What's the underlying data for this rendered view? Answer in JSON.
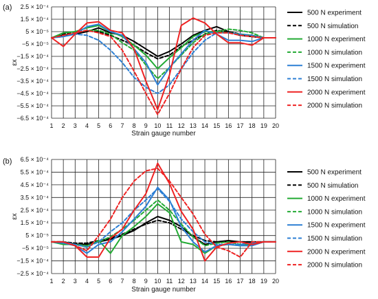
{
  "chart_data": [
    {
      "type": "line",
      "panel_label": "(a)",
      "xlabel": "Strain gauge number",
      "ylabel": "εx",
      "x": [
        1,
        2,
        3,
        4,
        5,
        6,
        7,
        8,
        9,
        10,
        11,
        12,
        13,
        14,
        15,
        16,
        17,
        18,
        19,
        20
      ],
      "xticklabels": [
        "1",
        "2",
        "3",
        "4",
        "5",
        "6",
        "7",
        "8",
        "9",
        "10",
        "11",
        "12",
        "13",
        "14",
        "15",
        "16",
        "17",
        "18",
        "19",
        "20"
      ],
      "ylim": [
        -0.00065,
        0.00025
      ],
      "yticks": [
        0.00025,
        0.00015,
        5e-05,
        -5e-05,
        -0.00015,
        -0.00025,
        -0.00035,
        -0.00045,
        -0.00055,
        -0.00065
      ],
      "yticklabels": [
        "2.5 × 10⁻⁴",
        "1.5 × 10⁻⁴",
        "5 × 10⁻⁵",
        "−5 × 10⁻⁵",
        "−1.5 × 10⁻⁴",
        "−2.5 × 10⁻⁴",
        "−3.5 × 10⁻⁴",
        "−4.5 × 10⁻⁴",
        "−5.5 × 10⁻⁴",
        "−6.5 × 10⁻⁴"
      ],
      "grid": true,
      "legend_position": "right",
      "series": [
        {
          "name": "500 N experiment",
          "color": "#000000",
          "dashed": false,
          "values": [
            0,
            2e-05,
            3e-05,
            5e-05,
            8e-05,
            4e-05,
            2e-05,
            -3e-05,
            -9e-05,
            -0.00015,
            -0.00011,
            -5e-05,
            2e-05,
            6e-05,
            9e-05,
            5e-05,
            2e-05,
            1e-05,
            0,
            0
          ]
        },
        {
          "name": "500 N simulation",
          "color": "#000000",
          "dashed": true,
          "values": [
            0,
            3e-05,
            4e-05,
            6e-05,
            5e-05,
            2e-05,
            -2e-05,
            -6e-05,
            -0.00012,
            -0.00017,
            -0.00014,
            -7e-05,
            -2e-05,
            3e-05,
            6e-05,
            5e-05,
            3e-05,
            1e-05,
            0,
            0
          ]
        },
        {
          "name": "1000 N experiment",
          "color": "#22aa33",
          "dashed": false,
          "values": [
            0,
            4e-05,
            5e-05,
            8e-05,
            0.0001,
            5e-05,
            1e-05,
            -6e-05,
            -0.00014,
            -0.00025,
            -0.00016,
            -8e-05,
            1e-05,
            5e-05,
            5e-05,
            4e-05,
            3e-05,
            2e-05,
            0,
            0
          ]
        },
        {
          "name": "1000 N simulation",
          "color": "#22aa33",
          "dashed": true,
          "values": [
            0,
            2e-05,
            4e-05,
            6e-05,
            6e-05,
            3e-05,
            -4e-05,
            -0.0001,
            -0.00022,
            -0.00033,
            -0.00024,
            -0.00014,
            -4e-05,
            3e-05,
            5e-05,
            7e-05,
            6e-05,
            4e-05,
            0,
            0
          ]
        },
        {
          "name": "1500 N experiment",
          "color": "#2c7fd4",
          "dashed": false,
          "values": [
            0,
            1e-05,
            3e-05,
            9e-05,
            0.00011,
            5e-05,
            2e-05,
            -9e-05,
            -0.0002,
            -0.00038,
            -0.00024,
            -0.00013,
            -2e-05,
            6e-05,
            3e-05,
            -2e-05,
            -2e-05,
            -3e-05,
            0,
            0
          ]
        },
        {
          "name": "1500 N simulation",
          "color": "#2c7fd4",
          "dashed": true,
          "values": [
            0,
            1e-05,
            3e-05,
            2e-05,
            -2e-05,
            -0.0001,
            -0.0002,
            -0.00032,
            -0.0004,
            -0.00045,
            -0.00038,
            -0.00025,
            -0.00012,
            -2e-05,
            4e-05,
            4e-05,
            3e-05,
            2e-05,
            0,
            0
          ]
        },
        {
          "name": "2000 N experiment",
          "color": "#ee2222",
          "dashed": false,
          "values": [
            0,
            -7e-05,
            3e-05,
            0.00012,
            0.00013,
            6e-05,
            4e-05,
            -9e-05,
            -0.00035,
            -0.00058,
            -0.0003,
            0.0001,
            0.00016,
            0.00012,
            3e-05,
            -4e-05,
            -4e-05,
            -6e-05,
            0,
            0
          ]
        },
        {
          "name": "2000 N simulation",
          "color": "#ee2222",
          "dashed": true,
          "values": [
            0,
            2e-05,
            4e-05,
            6e-05,
            4e-05,
            1e-05,
            -0.0001,
            -0.00027,
            -0.00045,
            -0.00062,
            -0.00045,
            -0.00025,
            -8e-05,
            2e-05,
            4e-05,
            4e-05,
            2e-05,
            1e-05,
            0,
            0
          ]
        }
      ]
    },
    {
      "type": "line",
      "panel_label": "(b)",
      "xlabel": "Strain gauge number",
      "ylabel": "εx",
      "x": [
        1,
        2,
        3,
        4,
        5,
        6,
        7,
        8,
        9,
        10,
        11,
        12,
        13,
        14,
        15,
        16,
        17,
        18,
        19,
        20
      ],
      "xticklabels": [
        "1",
        "2",
        "3",
        "4",
        "5",
        "6",
        "7",
        "8",
        "9",
        "10",
        "11",
        "12",
        "13",
        "14",
        "15",
        "16",
        "17",
        "18",
        "19",
        "20"
      ],
      "ylim": [
        -0.00025,
        0.00065
      ],
      "yticks": [
        0.00065,
        0.00055,
        0.00045,
        0.00035,
        0.00025,
        0.00015,
        5e-05,
        -5e-05,
        -0.00015,
        -0.00025
      ],
      "yticklabels": [
        "6.5 × 10⁻⁴",
        "5.5 × 10⁻⁴",
        "4.5 × 10⁻⁴",
        "3.5 × 10⁻⁴",
        "2.5 × 10⁻⁴",
        "1.5 × 10⁻⁴",
        "5 × 10⁻⁵",
        "−5 × 10⁻⁵",
        "−1.5 × 10⁻⁴",
        "−2.5 × 10⁻⁴"
      ],
      "grid": true,
      "legend_position": "right",
      "series": [
        {
          "name": "500 N experiment",
          "color": "#000000",
          "dashed": false,
          "values": [
            0,
            0,
            -2e-05,
            -2e-05,
            0,
            2e-05,
            5e-05,
            9e-05,
            0.00015,
            0.0002,
            0.00017,
            0.00012,
            4e-05,
            -2e-05,
            0,
            1e-05,
            0,
            0,
            0,
            0
          ]
        },
        {
          "name": "500 N simulation",
          "color": "#000000",
          "dashed": true,
          "values": [
            0,
            0,
            -1e-05,
            -1e-05,
            1e-05,
            3e-05,
            6e-05,
            0.0001,
            0.00014,
            0.00017,
            0.00015,
            0.0001,
            5e-05,
            1e-05,
            0,
            0,
            0,
            0,
            0,
            0
          ]
        },
        {
          "name": "1000 N experiment",
          "color": "#22aa33",
          "dashed": false,
          "values": [
            0,
            -2e-05,
            -2e-05,
            -4e-05,
            1e-05,
            -9e-05,
            5e-05,
            0.00012,
            0.0002,
            0.0003,
            0.00023,
            0,
            -2e-05,
            -9e-05,
            -3e-05,
            -2e-05,
            -3e-05,
            -2e-05,
            0,
            0
          ]
        },
        {
          "name": "1000 N simulation",
          "color": "#22aa33",
          "dashed": true,
          "values": [
            0,
            0,
            -2e-05,
            -3e-05,
            0,
            4e-05,
            0.0001,
            0.00017,
            0.00025,
            0.00033,
            0.00025,
            0.00014,
            4e-05,
            -3e-05,
            -1e-05,
            0,
            -2e-05,
            -1e-05,
            0,
            0
          ]
        },
        {
          "name": "1500 N experiment",
          "color": "#2c7fd4",
          "dashed": false,
          "values": [
            0,
            -1e-05,
            -3e-05,
            -9e-05,
            -2e-05,
            0,
            8e-05,
            0.00018,
            0.00028,
            0.00043,
            0.00033,
            0.00012,
            0,
            -8e-05,
            -3e-05,
            -2e-05,
            -3e-05,
            -3e-05,
            0,
            0
          ]
        },
        {
          "name": "1500 N simulation",
          "color": "#2c7fd4",
          "dashed": true,
          "values": [
            0,
            0,
            -2e-05,
            -4e-05,
            0,
            8e-05,
            0.00015,
            0.00025,
            0.00033,
            0.00042,
            0.00032,
            0.00018,
            8e-05,
            0,
            -2e-05,
            -2e-05,
            -2e-05,
            -1e-05,
            0,
            0
          ]
        },
        {
          "name": "2000 N experiment",
          "color": "#ee2222",
          "dashed": false,
          "values": [
            0,
            0,
            -3e-05,
            -0.00012,
            -0.00012,
            3e-05,
            0.0001,
            0.00025,
            0.00038,
            0.00062,
            0.00046,
            0.00024,
            0.0001,
            -0.00015,
            -4e-05,
            -1e-05,
            0,
            -2e-05,
            0,
            0
          ]
        },
        {
          "name": "2000 N simulation",
          "color": "#ee2222",
          "dashed": true,
          "values": [
            0,
            0,
            -3e-05,
            -7e-05,
            5e-05,
            0.00018,
            0.00035,
            0.00048,
            0.00056,
            0.00058,
            0.00048,
            0.00035,
            0.00022,
            6e-05,
            -4e-05,
            -7e-05,
            -0.00012,
            0,
            0,
            0
          ]
        }
      ]
    }
  ]
}
